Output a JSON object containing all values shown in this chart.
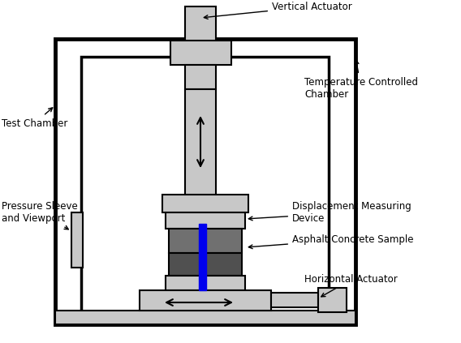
{
  "bg_color": "#ffffff",
  "gray_light": "#c8c8c8",
  "gray_dark": "#707070",
  "gray_darker": "#505050",
  "blue_color": "#0000ee",
  "black": "#000000",
  "labels": {
    "vertical_actuator": "Vertical Actuator",
    "temp_chamber": "Temperature Controlled\nChamber",
    "test_chamber": "Test Chamber",
    "pressure_sleeve": "Pressure Sleeve\nand Viewport",
    "displacement": "Displacement Measuring\nDevice",
    "asphalt": "Asphalt Concrete Sample",
    "horizontal": "Horizontal Actuator"
  },
  "figsize": [
    5.68,
    4.23
  ],
  "dpi": 100
}
